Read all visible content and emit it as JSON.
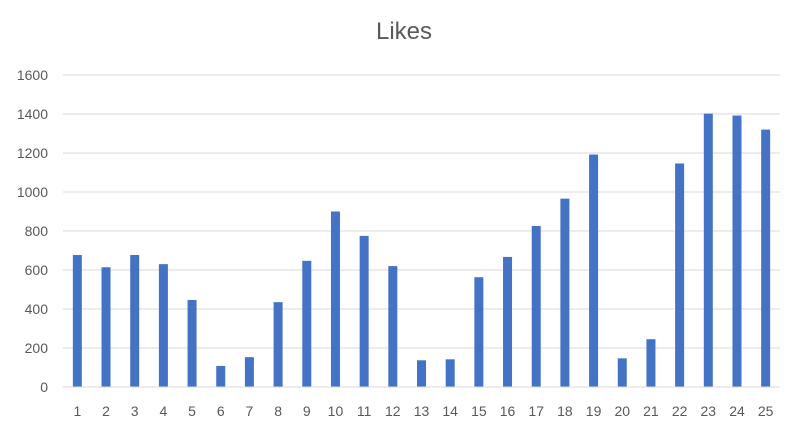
{
  "chart_data": {
    "type": "bar",
    "title": "Likes",
    "xlabel": "",
    "ylabel": "",
    "categories": [
      "1",
      "2",
      "3",
      "4",
      "5",
      "6",
      "7",
      "8",
      "9",
      "10",
      "11",
      "12",
      "13",
      "14",
      "15",
      "16",
      "17",
      "18",
      "19",
      "20",
      "21",
      "22",
      "23",
      "24",
      "25"
    ],
    "series": [
      {
        "values": [
          677,
          614,
          677,
          630,
          446,
          108,
          153,
          435,
          647,
          900,
          775,
          620,
          137,
          142,
          563,
          667,
          826,
          966,
          1192,
          147,
          245,
          1146,
          1402,
          1392,
          1320
        ]
      }
    ],
    "ylim": [
      0,
      1600
    ],
    "yticks": [
      0,
      200,
      400,
      600,
      800,
      1000,
      1200,
      1400,
      1600
    ],
    "grid": true,
    "legend": "none",
    "colors": {
      "bar": "#4472C4",
      "grid": "#D9D9D9",
      "axis": "#D9D9D9",
      "text": "#595959"
    }
  }
}
